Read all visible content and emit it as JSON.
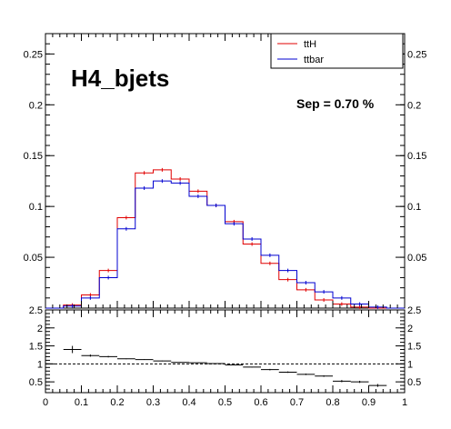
{
  "chart_data": [
    {
      "type": "step-histogram",
      "title": "H4_bjets",
      "annotation": "Sep = 0.70 %",
      "xlim": [
        0,
        1
      ],
      "ylim": [
        0,
        0.27
      ],
      "x_ticks": [
        "0",
        "0.1",
        "0.2",
        "0.3",
        "0.4",
        "0.5",
        "0.6",
        "0.7",
        "0.8",
        "0.9",
        "1"
      ],
      "y_ticks": [
        "0.05",
        "0.1",
        "0.15",
        "0.2",
        "0.25"
      ],
      "legend_position": "top-right",
      "bin_edges": [
        0,
        0.05,
        0.1,
        0.15,
        0.2,
        0.25,
        0.3,
        0.35,
        0.4,
        0.45,
        0.5,
        0.55,
        0.6,
        0.65,
        0.7,
        0.75,
        0.8,
        0.85,
        0.9,
        0.95,
        1.0
      ],
      "series": [
        {
          "name": "ttH",
          "color": "#e00000",
          "values": [
            0.0,
            0.003,
            0.013,
            0.037,
            0.089,
            0.133,
            0.136,
            0.127,
            0.115,
            0.101,
            0.085,
            0.063,
            0.044,
            0.028,
            0.018,
            0.008,
            0.004,
            0.001,
            0.0,
            0.0
          ]
        },
        {
          "name": "ttbar",
          "color": "#0000d0",
          "values": [
            0.0,
            0.002,
            0.01,
            0.03,
            0.078,
            0.118,
            0.125,
            0.123,
            0.11,
            0.101,
            0.083,
            0.068,
            0.052,
            0.037,
            0.025,
            0.016,
            0.01,
            0.004,
            0.001,
            0.0
          ]
        }
      ]
    },
    {
      "type": "ratio",
      "xlim": [
        0,
        1
      ],
      "ylim": [
        0.2,
        2.5
      ],
      "x_ticks": [
        "0",
        "0.1",
        "0.2",
        "0.3",
        "0.4",
        "0.5",
        "0.6",
        "0.7",
        "0.8",
        "0.9",
        "1"
      ],
      "y_ticks": [
        "0.5",
        "1",
        "1.5",
        "2",
        "2.5"
      ],
      "reference_line": 1,
      "points": [
        {
          "x": 0.075,
          "y": 1.4,
          "err": 0.1
        },
        {
          "x": 0.125,
          "y": 1.23,
          "err": 0.03
        },
        {
          "x": 0.175,
          "y": 1.2,
          "err": 0.02
        },
        {
          "x": 0.225,
          "y": 1.14,
          "err": 0.01
        },
        {
          "x": 0.275,
          "y": 1.12,
          "err": 0.01
        },
        {
          "x": 0.325,
          "y": 1.08,
          "err": 0.01
        },
        {
          "x": 0.375,
          "y": 1.04,
          "err": 0.01
        },
        {
          "x": 0.425,
          "y": 1.03,
          "err": 0.01
        },
        {
          "x": 0.475,
          "y": 1.01,
          "err": 0.01
        },
        {
          "x": 0.525,
          "y": 0.97,
          "err": 0.01
        },
        {
          "x": 0.575,
          "y": 0.91,
          "err": 0.01
        },
        {
          "x": 0.625,
          "y": 0.84,
          "err": 0.02
        },
        {
          "x": 0.675,
          "y": 0.77,
          "err": 0.02
        },
        {
          "x": 0.725,
          "y": 0.71,
          "err": 0.02
        },
        {
          "x": 0.775,
          "y": 0.66,
          "err": 0.02
        },
        {
          "x": 0.825,
          "y": 0.52,
          "err": 0.03
        },
        {
          "x": 0.875,
          "y": 0.5,
          "err": 0.03
        },
        {
          "x": 0.925,
          "y": 0.4,
          "err": 0.04
        }
      ]
    }
  ]
}
